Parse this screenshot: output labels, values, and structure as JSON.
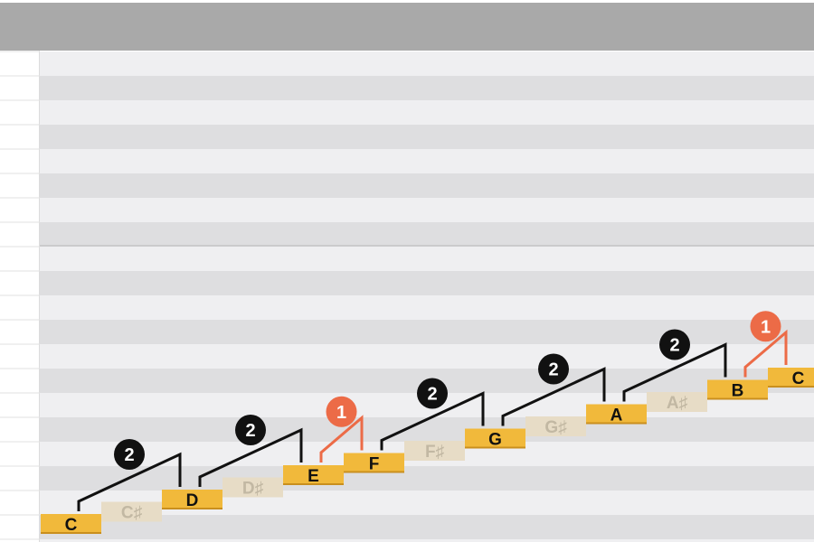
{
  "colors": {
    "toolbar": "#a9a9a9",
    "row_light": "#efeff1",
    "row_dark": "#dedee0",
    "natural_note": "#f1b93b",
    "sharp_note": "#e7dcc6",
    "sharp_text": "#c2b8a3",
    "whole_step": "#111111",
    "half_step": "#ec6b47",
    "badge_text": "#ffffff"
  },
  "notes": [
    {
      "label": "C",
      "kind": "natural"
    },
    {
      "label": "C♯",
      "kind": "sharp"
    },
    {
      "label": "D",
      "kind": "natural"
    },
    {
      "label": "D♯",
      "kind": "sharp"
    },
    {
      "label": "E",
      "kind": "natural"
    },
    {
      "label": "F",
      "kind": "natural"
    },
    {
      "label": "F♯",
      "kind": "sharp"
    },
    {
      "label": "G",
      "kind": "natural"
    },
    {
      "label": "G♯",
      "kind": "sharp"
    },
    {
      "label": "A",
      "kind": "natural"
    },
    {
      "label": "A♯",
      "kind": "sharp"
    },
    {
      "label": "B",
      "kind": "natural"
    },
    {
      "label": "C",
      "kind": "natural"
    }
  ],
  "steps": [
    {
      "label": "2",
      "kind": "whole"
    },
    {
      "label": "2",
      "kind": "whole"
    },
    {
      "label": "1",
      "kind": "half"
    },
    {
      "label": "2",
      "kind": "whole"
    },
    {
      "label": "2",
      "kind": "whole"
    },
    {
      "label": "2",
      "kind": "whole"
    },
    {
      "label": "1",
      "kind": "half"
    }
  ]
}
